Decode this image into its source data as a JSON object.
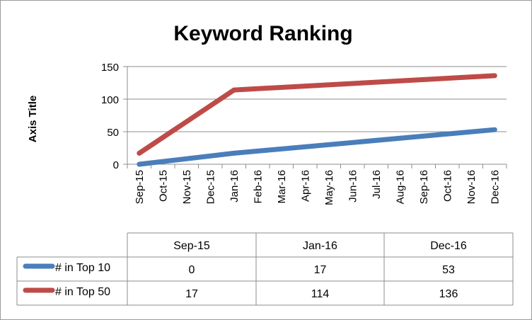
{
  "chart_data": {
    "type": "line",
    "title": "Keyword Ranking",
    "xlabel": "",
    "ylabel": "Axis Title",
    "ylim": [
      0,
      150
    ],
    "yticks": [
      0,
      50,
      100,
      150
    ],
    "categories": [
      "Sep-15",
      "Oct-15",
      "Nov-15",
      "Dec-15",
      "Jan-16",
      "Feb-16",
      "Mar-16",
      "Apr-16",
      "May-16",
      "Jun-16",
      "Jul-16",
      "Aug-16",
      "Sep-16",
      "Oct-16",
      "Nov-16",
      "Dec-16"
    ],
    "series": [
      {
        "name": "# in Top 10",
        "color": "#4a7ebb",
        "points": [
          {
            "x": "Sep-15",
            "y": 0
          },
          {
            "x": "Jan-16",
            "y": 17
          },
          {
            "x": "Dec-16",
            "y": 53
          }
        ]
      },
      {
        "name": "# in Top 50",
        "color": "#be4b48",
        "points": [
          {
            "x": "Sep-15",
            "y": 17
          },
          {
            "x": "Jan-16",
            "y": 114
          },
          {
            "x": "Dec-16",
            "y": 136
          }
        ]
      }
    ],
    "grid": true,
    "legend": "data-table",
    "data_table": {
      "headers": [
        "Sep-15",
        "Jan-16",
        "Dec-16"
      ],
      "rows": [
        {
          "label": "# in Top 10",
          "values": [
            "0",
            "17",
            "53"
          ]
        },
        {
          "label": "# in Top 50",
          "values": [
            "17",
            "114",
            "136"
          ]
        }
      ]
    }
  }
}
